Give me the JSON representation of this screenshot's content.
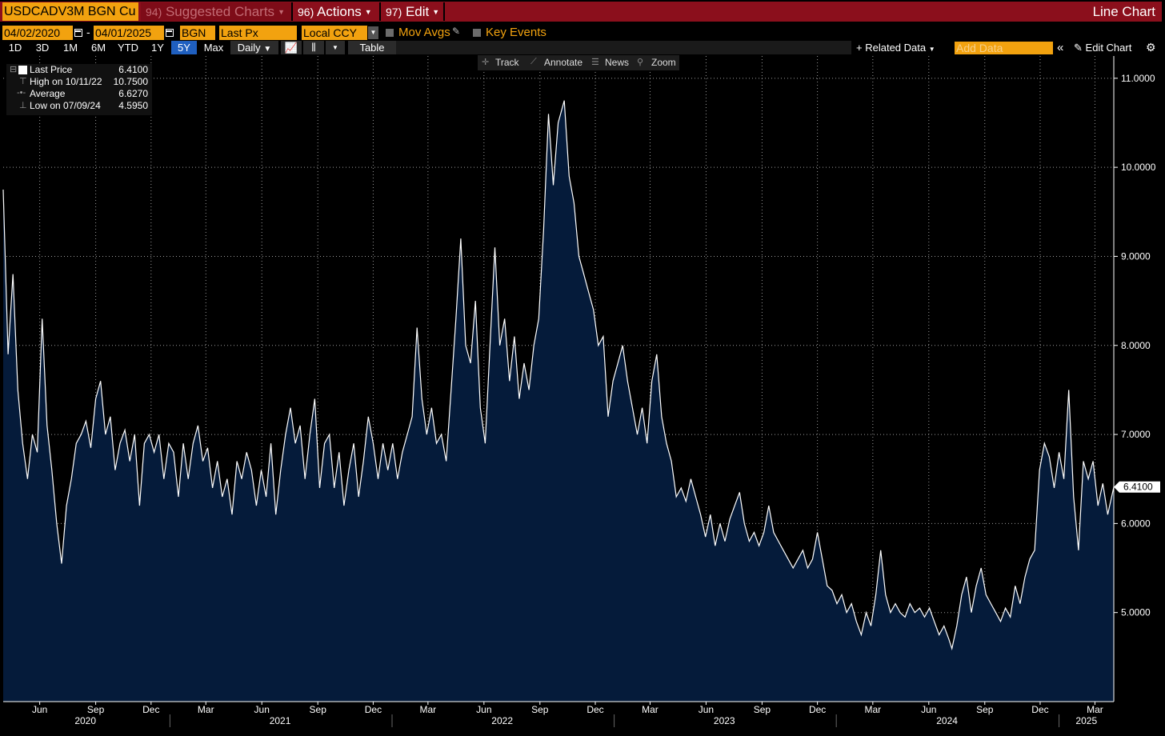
{
  "command_bar": {
    "ticker": "USDCADV3M BGN Cu",
    "suggested_num": "94)",
    "suggested_label": "Suggested Charts",
    "actions_num": "96)",
    "actions_label": "Actions",
    "edit_num": "97)",
    "edit_label": "Edit",
    "chart_type": "Line Chart"
  },
  "range_row": {
    "start_date": "04/02/2020",
    "end_date": "04/01/2025",
    "source": "BGN",
    "field": "Last Px",
    "currency": "Local CCY",
    "mov_avgs": "Mov Avgs",
    "key_events": "Key Events",
    "dash": "-"
  },
  "range_buttons": [
    "1D",
    "3D",
    "1M",
    "6M",
    "YTD",
    "1Y",
    "5Y",
    "Max"
  ],
  "active_range": "5Y",
  "periodicity": "Daily",
  "table_label": "Table",
  "related_data": "Related Data",
  "add_data_placeholder": "Add Data",
  "edit_chart": "Edit Chart",
  "chart_tools": {
    "track": "Track",
    "annotate": "Annotate",
    "news": "News",
    "zoom": "Zoom"
  },
  "legend": {
    "last_price_label": "Last Price",
    "last_price_value": "6.4100",
    "high_label": "High on 10/11/22",
    "high_value": "10.7500",
    "average_label": "Average",
    "average_value": "6.6270",
    "low_label": "Low on 07/09/24",
    "low_value": "4.5950"
  },
  "colors": {
    "accent_orange": "#f2a20f",
    "command_red": "#8b0f1c",
    "area_fill": "#051b3a",
    "line": "#ffffff",
    "active_button": "#1f5fbf"
  },
  "chart_data": {
    "type": "area",
    "title": "",
    "xlabel": "",
    "ylabel": "",
    "x_range": [
      "2020-04-02",
      "2025-04-01"
    ],
    "ylim": [
      4.0,
      11.25
    ],
    "y_ticks": [
      "5.0000",
      "6.0000",
      "7.0000",
      "8.0000",
      "9.0000",
      "10.0000",
      "11.0000"
    ],
    "y_tick_values": [
      5,
      6,
      7,
      8,
      9,
      10,
      11
    ],
    "grid": true,
    "last_value_label": "6.4100",
    "x_month_ticks": [
      {
        "label": "Jun",
        "date": "2020-06-01"
      },
      {
        "label": "Sep",
        "date": "2020-09-01"
      },
      {
        "label": "Dec",
        "date": "2020-12-01"
      },
      {
        "label": "Mar",
        "date": "2021-03-01"
      },
      {
        "label": "Jun",
        "date": "2021-06-01"
      },
      {
        "label": "Sep",
        "date": "2021-09-01"
      },
      {
        "label": "Dec",
        "date": "2021-12-01"
      },
      {
        "label": "Mar",
        "date": "2022-03-01"
      },
      {
        "label": "Jun",
        "date": "2022-06-01"
      },
      {
        "label": "Sep",
        "date": "2022-09-01"
      },
      {
        "label": "Dec",
        "date": "2022-12-01"
      },
      {
        "label": "Mar",
        "date": "2023-03-01"
      },
      {
        "label": "Jun",
        "date": "2023-06-01"
      },
      {
        "label": "Sep",
        "date": "2023-09-01"
      },
      {
        "label": "Dec",
        "date": "2023-12-01"
      },
      {
        "label": "Mar",
        "date": "2024-03-01"
      },
      {
        "label": "Jun",
        "date": "2024-06-01"
      },
      {
        "label": "Sep",
        "date": "2024-09-01"
      },
      {
        "label": "Dec",
        "date": "2024-12-01"
      },
      {
        "label": "Mar",
        "date": "2025-03-01"
      }
    ],
    "x_year_labels": [
      {
        "label": "2020",
        "date": "2020-08-15"
      },
      {
        "label": "2021",
        "date": "2021-07-01"
      },
      {
        "label": "2022",
        "date": "2022-07-01"
      },
      {
        "label": "2023",
        "date": "2023-07-01"
      },
      {
        "label": "2024",
        "date": "2024-07-01"
      },
      {
        "label": "2025",
        "date": "2025-02-15"
      }
    ],
    "x_year_boundaries": [
      "2021-01-01",
      "2022-01-01",
      "2023-01-01",
      "2024-01-01",
      "2025-01-01"
    ],
    "series": [
      {
        "values": [
          [
            "2020-04-02",
            9.75
          ],
          [
            "2020-04-10",
            7.9
          ],
          [
            "2020-04-18",
            8.8
          ],
          [
            "2020-04-26",
            7.5
          ],
          [
            "2020-05-04",
            6.9
          ],
          [
            "2020-05-12",
            6.5
          ],
          [
            "2020-05-20",
            7.0
          ],
          [
            "2020-05-28",
            6.8
          ],
          [
            "2020-06-05",
            8.3
          ],
          [
            "2020-06-13",
            7.1
          ],
          [
            "2020-06-21",
            6.6
          ],
          [
            "2020-06-29",
            6.0
          ],
          [
            "2020-07-07",
            5.55
          ],
          [
            "2020-07-15",
            6.2
          ],
          [
            "2020-07-23",
            6.5
          ],
          [
            "2020-07-31",
            6.9
          ],
          [
            "2020-08-08",
            7.0
          ],
          [
            "2020-08-16",
            7.15
          ],
          [
            "2020-08-24",
            6.85
          ],
          [
            "2020-09-01",
            7.4
          ],
          [
            "2020-09-09",
            7.6
          ],
          [
            "2020-09-17",
            7.0
          ],
          [
            "2020-09-25",
            7.2
          ],
          [
            "2020-10-03",
            6.6
          ],
          [
            "2020-10-11",
            6.9
          ],
          [
            "2020-10-19",
            7.05
          ],
          [
            "2020-10-27",
            6.7
          ],
          [
            "2020-11-04",
            7.0
          ],
          [
            "2020-11-12",
            6.2
          ],
          [
            "2020-11-20",
            6.9
          ],
          [
            "2020-11-28",
            7.0
          ],
          [
            "2020-12-06",
            6.8
          ],
          [
            "2020-12-14",
            7.0
          ],
          [
            "2020-12-22",
            6.5
          ],
          [
            "2020-12-30",
            6.9
          ],
          [
            "2021-01-07",
            6.8
          ],
          [
            "2021-01-15",
            6.3
          ],
          [
            "2021-01-23",
            6.9
          ],
          [
            "2021-01-31",
            6.5
          ],
          [
            "2021-02-08",
            6.9
          ],
          [
            "2021-02-16",
            7.1
          ],
          [
            "2021-02-24",
            6.7
          ],
          [
            "2021-03-04",
            6.85
          ],
          [
            "2021-03-12",
            6.4
          ],
          [
            "2021-03-20",
            6.7
          ],
          [
            "2021-03-28",
            6.3
          ],
          [
            "2021-04-05",
            6.5
          ],
          [
            "2021-04-13",
            6.1
          ],
          [
            "2021-04-21",
            6.7
          ],
          [
            "2021-04-29",
            6.5
          ],
          [
            "2021-05-07",
            6.8
          ],
          [
            "2021-05-15",
            6.6
          ],
          [
            "2021-05-23",
            6.2
          ],
          [
            "2021-05-31",
            6.6
          ],
          [
            "2021-06-08",
            6.3
          ],
          [
            "2021-06-16",
            6.9
          ],
          [
            "2021-06-24",
            6.1
          ],
          [
            "2021-07-02",
            6.6
          ],
          [
            "2021-07-10",
            7.0
          ],
          [
            "2021-07-18",
            7.3
          ],
          [
            "2021-07-26",
            6.9
          ],
          [
            "2021-08-03",
            7.1
          ],
          [
            "2021-08-11",
            6.5
          ],
          [
            "2021-08-19",
            7.0
          ],
          [
            "2021-08-27",
            7.4
          ],
          [
            "2021-09-04",
            6.4
          ],
          [
            "2021-09-12",
            6.9
          ],
          [
            "2021-09-20",
            7.0
          ],
          [
            "2021-09-28",
            6.4
          ],
          [
            "2021-10-06",
            6.8
          ],
          [
            "2021-10-14",
            6.2
          ],
          [
            "2021-10-22",
            6.6
          ],
          [
            "2021-10-30",
            6.9
          ],
          [
            "2021-11-07",
            6.3
          ],
          [
            "2021-11-15",
            6.7
          ],
          [
            "2021-11-23",
            7.2
          ],
          [
            "2021-12-01",
            6.9
          ],
          [
            "2021-12-09",
            6.5
          ],
          [
            "2021-12-17",
            6.9
          ],
          [
            "2021-12-25",
            6.6
          ],
          [
            "2022-01-02",
            6.9
          ],
          [
            "2022-01-10",
            6.5
          ],
          [
            "2022-01-18",
            6.8
          ],
          [
            "2022-01-26",
            7.0
          ],
          [
            "2022-02-03",
            7.2
          ],
          [
            "2022-02-11",
            8.2
          ],
          [
            "2022-02-19",
            7.4
          ],
          [
            "2022-02-27",
            7.0
          ],
          [
            "2022-03-07",
            7.3
          ],
          [
            "2022-03-15",
            6.9
          ],
          [
            "2022-03-23",
            7.0
          ],
          [
            "2022-03-31",
            6.7
          ],
          [
            "2022-04-08",
            7.5
          ],
          [
            "2022-04-16",
            8.3
          ],
          [
            "2022-04-24",
            9.2
          ],
          [
            "2022-05-02",
            8.0
          ],
          [
            "2022-05-10",
            7.8
          ],
          [
            "2022-05-18",
            8.5
          ],
          [
            "2022-05-26",
            7.3
          ],
          [
            "2022-06-03",
            6.9
          ],
          [
            "2022-06-11",
            8.0
          ],
          [
            "2022-06-19",
            9.1
          ],
          [
            "2022-06-27",
            8.0
          ],
          [
            "2022-07-05",
            8.3
          ],
          [
            "2022-07-13",
            7.6
          ],
          [
            "2022-07-21",
            8.1
          ],
          [
            "2022-07-29",
            7.4
          ],
          [
            "2022-08-06",
            7.8
          ],
          [
            "2022-08-14",
            7.5
          ],
          [
            "2022-08-22",
            8.0
          ],
          [
            "2022-08-30",
            8.3
          ],
          [
            "2022-09-07",
            9.3
          ],
          [
            "2022-09-15",
            10.6
          ],
          [
            "2022-09-23",
            9.8
          ],
          [
            "2022-10-01",
            10.5
          ],
          [
            "2022-10-11",
            10.75
          ],
          [
            "2022-10-19",
            9.9
          ],
          [
            "2022-10-27",
            9.6
          ],
          [
            "2022-11-04",
            9.0
          ],
          [
            "2022-11-12",
            8.8
          ],
          [
            "2022-11-20",
            8.6
          ],
          [
            "2022-11-28",
            8.4
          ],
          [
            "2022-12-06",
            8.0
          ],
          [
            "2022-12-14",
            8.1
          ],
          [
            "2022-12-22",
            7.2
          ],
          [
            "2022-12-30",
            7.6
          ],
          [
            "2023-01-07",
            7.8
          ],
          [
            "2023-01-15",
            8.0
          ],
          [
            "2023-01-23",
            7.6
          ],
          [
            "2023-01-31",
            7.3
          ],
          [
            "2023-02-08",
            7.0
          ],
          [
            "2023-02-16",
            7.3
          ],
          [
            "2023-02-24",
            6.9
          ],
          [
            "2023-03-04",
            7.6
          ],
          [
            "2023-03-12",
            7.9
          ],
          [
            "2023-03-20",
            7.2
          ],
          [
            "2023-03-28",
            6.9
          ],
          [
            "2023-04-05",
            6.7
          ],
          [
            "2023-04-13",
            6.3
          ],
          [
            "2023-04-21",
            6.4
          ],
          [
            "2023-04-29",
            6.25
          ],
          [
            "2023-05-07",
            6.5
          ],
          [
            "2023-05-15",
            6.3
          ],
          [
            "2023-05-23",
            6.1
          ],
          [
            "2023-05-31",
            5.85
          ],
          [
            "2023-06-08",
            6.1
          ],
          [
            "2023-06-16",
            5.75
          ],
          [
            "2023-06-24",
            6.0
          ],
          [
            "2023-07-02",
            5.8
          ],
          [
            "2023-07-10",
            6.05
          ],
          [
            "2023-07-18",
            6.2
          ],
          [
            "2023-07-26",
            6.35
          ],
          [
            "2023-08-03",
            6.0
          ],
          [
            "2023-08-11",
            5.8
          ],
          [
            "2023-08-19",
            5.9
          ],
          [
            "2023-08-27",
            5.75
          ],
          [
            "2023-09-04",
            5.9
          ],
          [
            "2023-09-12",
            6.2
          ],
          [
            "2023-09-20",
            5.9
          ],
          [
            "2023-09-28",
            5.8
          ],
          [
            "2023-10-06",
            5.7
          ],
          [
            "2023-10-14",
            5.6
          ],
          [
            "2023-10-22",
            5.5
          ],
          [
            "2023-10-30",
            5.6
          ],
          [
            "2023-11-07",
            5.7
          ],
          [
            "2023-11-15",
            5.5
          ],
          [
            "2023-11-23",
            5.6
          ],
          [
            "2023-12-01",
            5.9
          ],
          [
            "2023-12-09",
            5.6
          ],
          [
            "2023-12-17",
            5.3
          ],
          [
            "2023-12-25",
            5.25
          ],
          [
            "2024-01-02",
            5.1
          ],
          [
            "2024-01-10",
            5.2
          ],
          [
            "2024-01-18",
            5.0
          ],
          [
            "2024-01-26",
            5.1
          ],
          [
            "2024-02-03",
            4.9
          ],
          [
            "2024-02-11",
            4.75
          ],
          [
            "2024-02-19",
            5.0
          ],
          [
            "2024-02-27",
            4.85
          ],
          [
            "2024-03-06",
            5.2
          ],
          [
            "2024-03-14",
            5.7
          ],
          [
            "2024-03-22",
            5.2
          ],
          [
            "2024-03-30",
            5.0
          ],
          [
            "2024-04-07",
            5.1
          ],
          [
            "2024-04-15",
            5.0
          ],
          [
            "2024-04-23",
            4.95
          ],
          [
            "2024-05-01",
            5.1
          ],
          [
            "2024-05-09",
            5.0
          ],
          [
            "2024-05-17",
            5.05
          ],
          [
            "2024-05-25",
            4.95
          ],
          [
            "2024-06-02",
            5.05
          ],
          [
            "2024-06-10",
            4.9
          ],
          [
            "2024-06-18",
            4.75
          ],
          [
            "2024-06-26",
            4.85
          ],
          [
            "2024-07-04",
            4.7
          ],
          [
            "2024-07-09",
            4.595
          ],
          [
            "2024-07-17",
            4.85
          ],
          [
            "2024-07-25",
            5.2
          ],
          [
            "2024-08-02",
            5.4
          ],
          [
            "2024-08-10",
            5.0
          ],
          [
            "2024-08-18",
            5.3
          ],
          [
            "2024-08-26",
            5.5
          ],
          [
            "2024-09-03",
            5.2
          ],
          [
            "2024-09-11",
            5.1
          ],
          [
            "2024-09-19",
            5.0
          ],
          [
            "2024-09-27",
            4.9
          ],
          [
            "2024-10-05",
            5.05
          ],
          [
            "2024-10-13",
            4.95
          ],
          [
            "2024-10-21",
            5.3
          ],
          [
            "2024-10-29",
            5.1
          ],
          [
            "2024-11-06",
            5.4
          ],
          [
            "2024-11-14",
            5.6
          ],
          [
            "2024-11-22",
            5.7
          ],
          [
            "2024-11-30",
            6.6
          ],
          [
            "2024-12-08",
            6.9
          ],
          [
            "2024-12-16",
            6.75
          ],
          [
            "2024-12-24",
            6.4
          ],
          [
            "2025-01-01",
            6.8
          ],
          [
            "2025-01-09",
            6.5
          ],
          [
            "2025-01-17",
            7.5
          ],
          [
            "2025-01-25",
            6.3
          ],
          [
            "2025-02-02",
            5.7
          ],
          [
            "2025-02-10",
            6.7
          ],
          [
            "2025-02-18",
            6.5
          ],
          [
            "2025-02-26",
            6.7
          ],
          [
            "2025-03-06",
            6.2
          ],
          [
            "2025-03-14",
            6.45
          ],
          [
            "2025-03-22",
            6.1
          ],
          [
            "2025-04-01",
            6.41
          ]
        ]
      }
    ]
  }
}
